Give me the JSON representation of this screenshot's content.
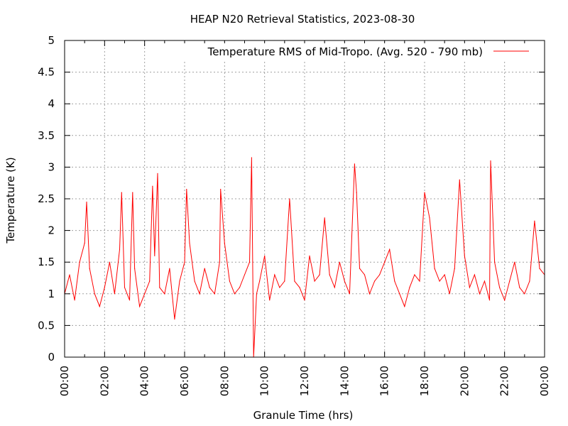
{
  "chart_data": {
    "type": "line",
    "title": "HEAP N20 Retrieval Statistics, 2023-08-30",
    "xlabel": "Granule Time (hrs)",
    "ylabel": "Temperature (K)",
    "xlim": [
      0,
      24
    ],
    "ylim": [
      0,
      5
    ],
    "grid": true,
    "legend_position": "top-right",
    "x_tick_labels": [
      "00:00",
      "02:00",
      "04:00",
      "06:00",
      "08:00",
      "10:00",
      "12:00",
      "14:00",
      "16:00",
      "18:00",
      "20:00",
      "22:00",
      "00:00"
    ],
    "y_tick_labels": [
      "0",
      "0.5",
      "1",
      "1.5",
      "2",
      "2.5",
      "3",
      "3.5",
      "4",
      "4.5",
      "5"
    ],
    "series": [
      {
        "name": "Temperature RMS of Mid-Tropo. (Avg. 520 - 790 mb)",
        "color": "#ff0000",
        "x_hours": [
          0.0,
          0.25,
          0.5,
          0.75,
          1.0,
          1.1,
          1.25,
          1.5,
          1.75,
          2.0,
          2.25,
          2.5,
          2.75,
          2.85,
          3.0,
          3.25,
          3.5,
          3.4,
          3.75,
          4.0,
          4.25,
          4.4,
          4.5,
          4.65,
          4.75,
          5.0,
          5.25,
          5.5,
          5.75,
          6.0,
          6.1,
          6.25,
          6.5,
          6.75,
          7.0,
          7.25,
          7.5,
          7.75,
          7.8,
          8.0,
          8.25,
          8.5,
          8.75,
          9.0,
          9.25,
          9.35,
          9.45,
          9.6,
          9.75,
          10.0,
          10.25,
          10.5,
          10.75,
          11.0,
          11.25,
          11.5,
          11.75,
          12.0,
          12.25,
          12.5,
          12.75,
          13.0,
          13.25,
          13.5,
          13.75,
          14.0,
          14.25,
          14.5,
          14.6,
          14.75,
          15.0,
          15.25,
          15.5,
          15.75,
          16.0,
          16.25,
          16.5,
          16.75,
          17.0,
          17.25,
          17.5,
          17.75,
          18.0,
          18.25,
          18.5,
          18.75,
          19.0,
          19.25,
          19.5,
          19.75,
          20.0,
          20.25,
          20.5,
          20.75,
          21.0,
          21.25,
          21.3,
          21.5,
          21.75,
          22.0,
          22.25,
          22.5,
          22.75,
          23.0,
          23.25,
          23.5,
          23.75,
          24.0
        ],
        "values": [
          1.0,
          1.3,
          0.9,
          1.5,
          1.8,
          2.45,
          1.4,
          1.0,
          0.8,
          1.1,
          1.5,
          1.0,
          1.7,
          2.6,
          1.1,
          0.9,
          1.4,
          2.6,
          0.8,
          1.0,
          1.2,
          2.7,
          1.6,
          2.9,
          1.1,
          1.0,
          1.4,
          0.6,
          1.2,
          1.5,
          2.65,
          1.8,
          1.2,
          1.0,
          1.4,
          1.1,
          1.0,
          1.5,
          2.65,
          1.8,
          1.2,
          1.0,
          1.1,
          1.3,
          1.5,
          3.15,
          0.0,
          1.0,
          1.2,
          1.6,
          0.9,
          1.3,
          1.1,
          1.2,
          2.5,
          1.2,
          1.1,
          0.9,
          1.6,
          1.2,
          1.3,
          2.2,
          1.3,
          1.1,
          1.5,
          1.2,
          1.0,
          3.05,
          2.6,
          1.4,
          1.3,
          1.0,
          1.2,
          1.3,
          1.5,
          1.7,
          1.2,
          1.0,
          0.8,
          1.1,
          1.3,
          1.2,
          2.6,
          2.2,
          1.4,
          1.2,
          1.3,
          1.0,
          1.4,
          2.8,
          1.6,
          1.1,
          1.3,
          1.0,
          1.2,
          0.9,
          3.1,
          1.5,
          1.1,
          0.9,
          1.2,
          1.5,
          1.1,
          1.0,
          1.2,
          2.15,
          1.4,
          1.3
        ]
      }
    ]
  }
}
